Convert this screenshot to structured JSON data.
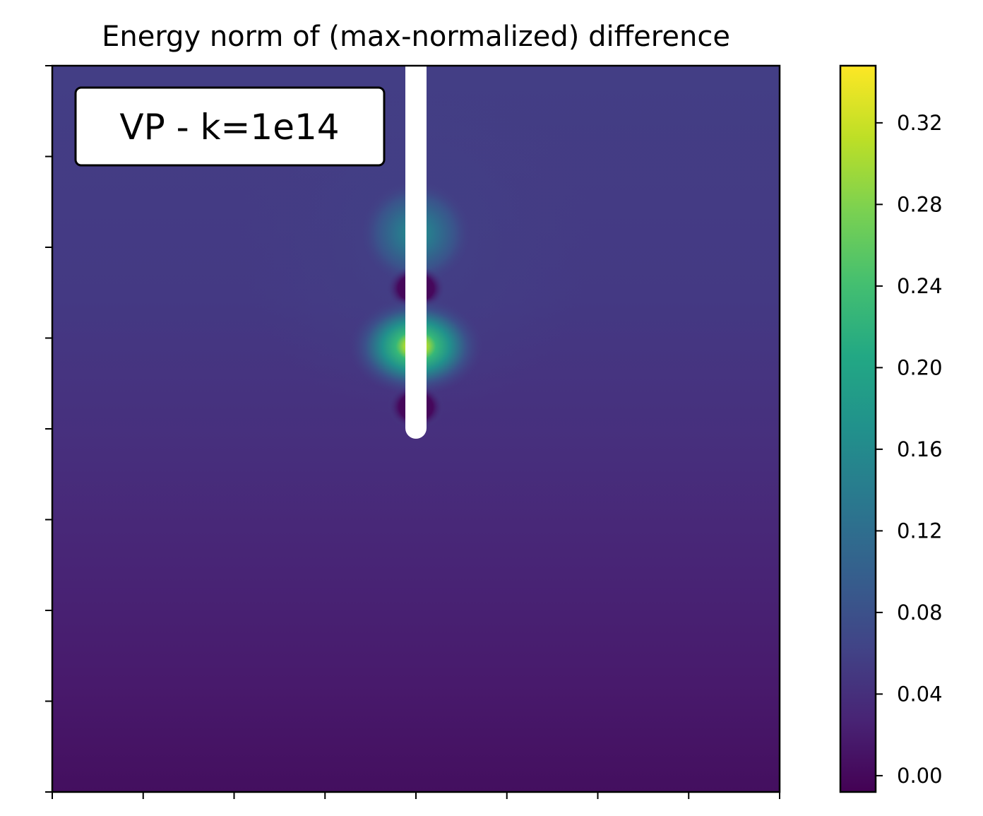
{
  "chart_data": {
    "type": "heatmap",
    "title": "Energy norm of (max-normalized) difference",
    "annotation": "VP - k=1e14",
    "xlabel": "",
    "ylabel": "",
    "x_tick_count": 9,
    "y_tick_count": 9,
    "x_tick_labels": [],
    "y_tick_labels": [],
    "colormap": "viridis",
    "colorbar": {
      "vmin": -0.008,
      "vmax": 0.348,
      "ticks": [
        0.0,
        0.04,
        0.08,
        0.12,
        0.16,
        0.2,
        0.24,
        0.28,
        0.32
      ],
      "tick_labels": [
        "0.00",
        "0.04",
        "0.08",
        "0.12",
        "0.16",
        "0.20",
        "0.24",
        "0.28",
        "0.32"
      ],
      "levels": 40
    },
    "field_description_values": {
      "background_bottom": 0.0,
      "background_mid": 0.03,
      "background_top": 0.05,
      "peak_upper_hotspot": 0.17,
      "peak_lower_hotspot": 0.35,
      "dip_regions": 0.0
    },
    "fracture": {
      "x": 0.5,
      "y_top": 1.0,
      "y_bottom": 0.5,
      "color": "#ffffff"
    },
    "legend": "top-left",
    "grid": false
  }
}
